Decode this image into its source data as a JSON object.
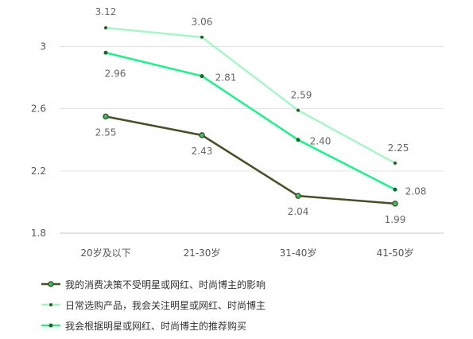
{
  "chart_data": {
    "type": "line",
    "categories": [
      "20岁及以下",
      "21-30岁",
      "31-40岁",
      "41-50岁"
    ],
    "y_ticks": [
      "1.8",
      "2.2",
      "2.6",
      "3"
    ],
    "ylim": [
      1.8,
      3.2
    ],
    "grid": true,
    "legend_position": "bottom-left",
    "series": [
      {
        "name": "我的消费决策不受明星或网红、时尚博主的影响",
        "values": [
          2.55,
          2.43,
          2.04,
          1.99
        ],
        "labels": [
          "2.55",
          "2.43",
          "2.04",
          "1.99"
        ],
        "color": "#4a4e28",
        "marker_fill": "#2ecc71"
      },
      {
        "name": "日常选购产品，我会关注明星或网红、时尚博主",
        "values": [
          3.12,
          3.06,
          2.59,
          2.25
        ],
        "labels": [
          "3.12",
          "3.06",
          "2.59",
          "2.25"
        ],
        "color": "#a8f5c8",
        "marker_fill": "#2a5a20"
      },
      {
        "name": "我会根据明星或网红、时尚博主的推荐购买",
        "values": [
          2.96,
          2.81,
          2.4,
          2.08
        ],
        "labels": [
          "2.96",
          "2.81",
          "2.40",
          "2.08"
        ],
        "color": "#1ef08c",
        "marker_fill": "#0f6a2a"
      }
    ]
  }
}
